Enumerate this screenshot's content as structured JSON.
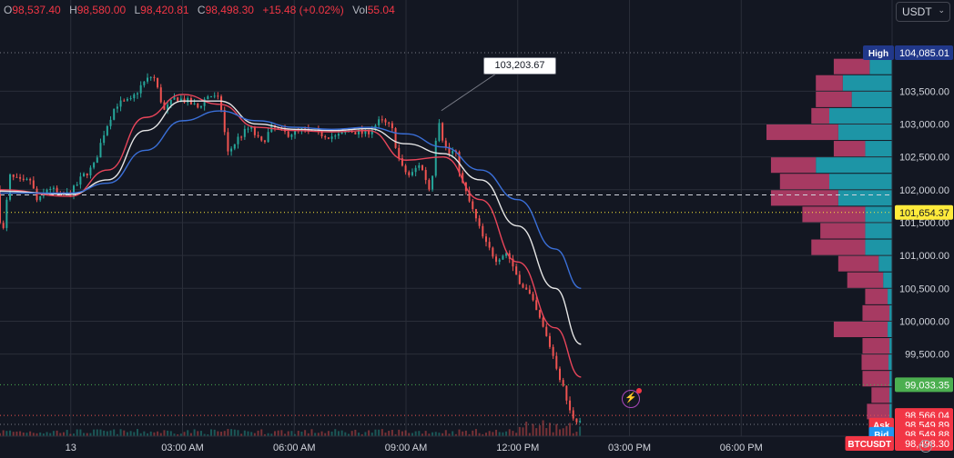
{
  "ohlc": {
    "open_key": "O",
    "open": "98,537.40",
    "high_key": "H",
    "high": "98,580.00",
    "low_key": "L",
    "low": "98,420.81",
    "close_key": "C",
    "close": "98,498.30",
    "change": "+15.48 (+0.02%)",
    "vol_key": "Vol",
    "vol": "55.04"
  },
  "quote_currency": "USDT",
  "annotation_label": "103,203.67",
  "colors": {
    "background": "#131722",
    "grid": "#2a2e39",
    "up": "#26a69a",
    "down": "#ef5350",
    "ma_fast": "#e8455a",
    "ma_mid": "#e6e6e6",
    "ma_slow": "#3a6fd8",
    "bid_vol": "#1fa3b5",
    "ask_vol": "#c2416d",
    "high_tag": "#21388a",
    "last_tag": "#f23645",
    "green_tag": "#4caf50",
    "bid_tag": "#2196f3"
  },
  "chart_data": {
    "type": "candlestick",
    "symbol": "BTCUSDT",
    "ylim": [
      98250,
      104500
    ],
    "y_ticks": [
      99500,
      100000,
      100500,
      101000,
      101500,
      102000,
      102500,
      103000,
      103500
    ],
    "y_tick_labels": [
      "99,500.00",
      "100,000.00",
      "100,500.00",
      "101,000.00",
      "101,500.00",
      "102,000.00",
      "102,500.00",
      "103,000.00",
      "103,500.00"
    ],
    "x_tick_labels": [
      "13",
      "03:00 AM",
      "06:00 AM",
      "09:00 AM",
      "12:00 PM",
      "03:00 PM",
      "06:00 PM"
    ],
    "x_tick_hours": [
      0,
      3,
      6,
      9,
      12,
      15,
      18
    ],
    "xlim_hours": [
      -1.9,
      22.05
    ],
    "price_path": [
      [
        -1.9,
        102000
      ],
      [
        -1.75,
        101250
      ],
      [
        -1.55,
        102200
      ],
      [
        -1.2,
        102100
      ],
      [
        -1.0,
        102150
      ],
      [
        -0.8,
        101800
      ],
      [
        -0.5,
        102050
      ],
      [
        -0.2,
        101900
      ],
      [
        0.1,
        101950
      ],
      [
        0.4,
        102200
      ],
      [
        0.7,
        102350
      ],
      [
        1.0,
        102900
      ],
      [
        1.3,
        103300
      ],
      [
        1.7,
        103350
      ],
      [
        2.0,
        103600
      ],
      [
        2.3,
        103750
      ],
      [
        2.6,
        103200
      ],
      [
        2.9,
        103400
      ],
      [
        3.2,
        103350
      ],
      [
        3.5,
        103250
      ],
      [
        3.8,
        103450
      ],
      [
        4.1,
        103350
      ],
      [
        4.3,
        102550
      ],
      [
        4.6,
        102800
      ],
      [
        4.9,
        102950
      ],
      [
        5.2,
        102700
      ],
      [
        5.5,
        102950
      ],
      [
        5.9,
        102850
      ],
      [
        6.3,
        102900
      ],
      [
        6.8,
        102850
      ],
      [
        7.2,
        102800
      ],
      [
        7.6,
        102900
      ],
      [
        8.0,
        102850
      ],
      [
        8.4,
        103050
      ],
      [
        8.7,
        102950
      ],
      [
        8.95,
        102350
      ],
      [
        9.2,
        102200
      ],
      [
        9.45,
        102400
      ],
      [
        9.6,
        102200
      ],
      [
        9.75,
        101950
      ],
      [
        9.95,
        103150
      ],
      [
        10.1,
        102700
      ],
      [
        10.25,
        102550
      ],
      [
        10.4,
        102600
      ],
      [
        10.6,
        102100
      ],
      [
        10.9,
        101650
      ],
      [
        11.2,
        101200
      ],
      [
        11.5,
        100950
      ],
      [
        11.8,
        101050
      ],
      [
        12.1,
        100650
      ],
      [
        12.4,
        100400
      ],
      [
        12.7,
        100000
      ],
      [
        13.0,
        99550
      ],
      [
        13.3,
        99000
      ],
      [
        13.5,
        98600
      ],
      [
        13.6,
        98530
      ],
      [
        13.7,
        98498
      ]
    ],
    "series": [
      {
        "name": "",
        "color": "#e8455a",
        "points": [
          [
            -1.9,
            102000
          ],
          [
            0,
            101900
          ],
          [
            1,
            102300
          ],
          [
            2,
            103100
          ],
          [
            3,
            103450
          ],
          [
            4,
            103300
          ],
          [
            5,
            102950
          ],
          [
            6,
            102900
          ],
          [
            7,
            102880
          ],
          [
            8,
            102900
          ],
          [
            9,
            102450
          ],
          [
            10,
            102500
          ],
          [
            11,
            101850
          ],
          [
            12,
            100900
          ],
          [
            13,
            99900
          ],
          [
            13.7,
            99150
          ]
        ]
      },
      {
        "name": "",
        "color": "#e6e6e6",
        "points": [
          [
            -1.9,
            101980
          ],
          [
            0,
            101930
          ],
          [
            1,
            102150
          ],
          [
            2,
            102900
          ],
          [
            3,
            103350
          ],
          [
            4,
            103350
          ],
          [
            5,
            103000
          ],
          [
            6,
            102920
          ],
          [
            7,
            102900
          ],
          [
            8,
            102930
          ],
          [
            9,
            102700
          ],
          [
            10,
            102550
          ],
          [
            11,
            102150
          ],
          [
            12,
            101450
          ],
          [
            13,
            100500
          ],
          [
            13.7,
            99650
          ]
        ]
      },
      {
        "name": "",
        "color": "#3a6fd8",
        "points": [
          [
            -1.9,
            101950
          ],
          [
            0,
            101950
          ],
          [
            1,
            102100
          ],
          [
            2,
            102600
          ],
          [
            3,
            103050
          ],
          [
            4,
            103200
          ],
          [
            5,
            103050
          ],
          [
            6,
            102950
          ],
          [
            7,
            102920
          ],
          [
            8,
            102950
          ],
          [
            9,
            102850
          ],
          [
            10,
            102650
          ],
          [
            11,
            102300
          ],
          [
            12,
            101850
          ],
          [
            13,
            101100
          ],
          [
            13.7,
            100500
          ]
        ]
      }
    ],
    "annotation": {
      "label": "103,203.67",
      "x_hours": 9.95,
      "price": 103203.67
    },
    "reference_lines": [
      {
        "price": 101922,
        "style": "dashed",
        "color": "#d1d4dc"
      },
      {
        "price": 101654.37,
        "style": "dotted",
        "color": "#ffeb3b"
      },
      {
        "price": 104085.01,
        "style": "dotted",
        "color": "#787b86"
      },
      {
        "price": 99033.35,
        "style": "dotted",
        "color": "#4caf50"
      },
      {
        "price": 98566.04,
        "style": "dotted",
        "color": "#ef5350"
      },
      {
        "price": 98430,
        "style": "dotted",
        "color": "#787b86"
      }
    ],
    "price_tags": [
      {
        "label": "High",
        "value": "104,085.01",
        "price": 104085.01,
        "kind": "high"
      },
      {
        "label": "",
        "value": "101,654.37",
        "price": 101654.37,
        "kind": "yellow"
      },
      {
        "label": "",
        "value": "99,033.35",
        "price": 99033.35,
        "kind": "green"
      },
      {
        "label": "",
        "value": "98,566.04",
        "price": 98566.04,
        "kind": "red"
      },
      {
        "label": "Ask",
        "value": "98,549.89",
        "price": 98420,
        "kind": "ask"
      },
      {
        "label": "Bid",
        "value": "98,549.88",
        "price": 98280,
        "kind": "bid"
      },
      {
        "label": "BTCUSDT",
        "value": "98,498.30",
        "price": 98140,
        "kind": "symbol"
      }
    ],
    "volume_profile": [
      {
        "price": 103875,
        "bid": 25,
        "ask": 40
      },
      {
        "price": 103625,
        "bid": 55,
        "ask": 30
      },
      {
        "price": 103375,
        "bid": 45,
        "ask": 40
      },
      {
        "price": 103125,
        "bid": 70,
        "ask": 20
      },
      {
        "price": 102875,
        "bid": 60,
        "ask": 80
      },
      {
        "price": 102625,
        "bid": 30,
        "ask": 35
      },
      {
        "price": 102375,
        "bid": 85,
        "ask": 50
      },
      {
        "price": 102125,
        "bid": 70,
        "ask": 55
      },
      {
        "price": 101875,
        "bid": 60,
        "ask": 75
      },
      {
        "price": 101625,
        "bid": 30,
        "ask": 70
      },
      {
        "price": 101375,
        "bid": 30,
        "ask": 50
      },
      {
        "price": 101125,
        "bid": 30,
        "ask": 60
      },
      {
        "price": 100875,
        "bid": 15,
        "ask": 45
      },
      {
        "price": 100625,
        "bid": 10,
        "ask": 40
      },
      {
        "price": 100375,
        "bid": 5,
        "ask": 25
      },
      {
        "price": 100125,
        "bid": 3,
        "ask": 30
      },
      {
        "price": 99875,
        "bid": 5,
        "ask": 60
      },
      {
        "price": 99625,
        "bid": 3,
        "ask": 30
      },
      {
        "price": 99375,
        "bid": 4,
        "ask": 30
      },
      {
        "price": 99125,
        "bid": 3,
        "ask": 30
      },
      {
        "price": 98875,
        "bid": 3,
        "ask": 20
      },
      {
        "price": 98625,
        "bid": 3,
        "ask": 25
      },
      {
        "price": 98375,
        "bid": 2,
        "ask": 20
      }
    ]
  }
}
